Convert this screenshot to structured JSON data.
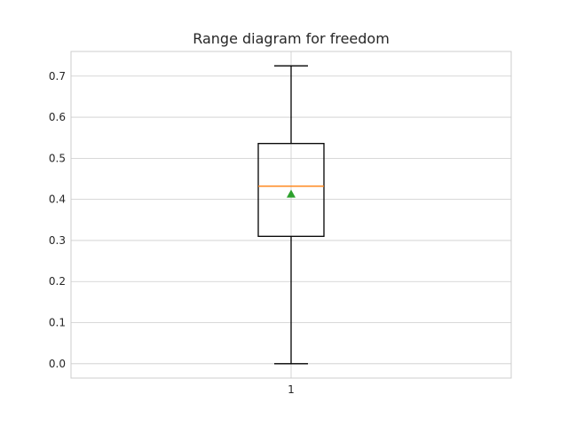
{
  "chart_data": {
    "type": "box",
    "title": "Range diagram for freedom",
    "xlabel": "",
    "ylabel": "",
    "categories": [
      "1"
    ],
    "ylim": [
      -0.035,
      0.76
    ],
    "yticks": [
      0.0,
      0.1,
      0.2,
      0.3,
      0.4,
      0.5,
      0.6,
      0.7
    ],
    "ytick_labels": [
      "0.0",
      "0.1",
      "0.2",
      "0.3",
      "0.4",
      "0.5",
      "0.6",
      "0.7"
    ],
    "grid": true,
    "boxes": [
      {
        "label": "1",
        "whisker_low": 0.0,
        "q1": 0.31,
        "median": 0.432,
        "q3": 0.536,
        "whisker_high": 0.725,
        "mean": 0.413
      }
    ],
    "colors": {
      "box": "#000000",
      "median": "#ff7f0e",
      "mean": "#2ca02c",
      "grid": "#cccccc"
    }
  }
}
